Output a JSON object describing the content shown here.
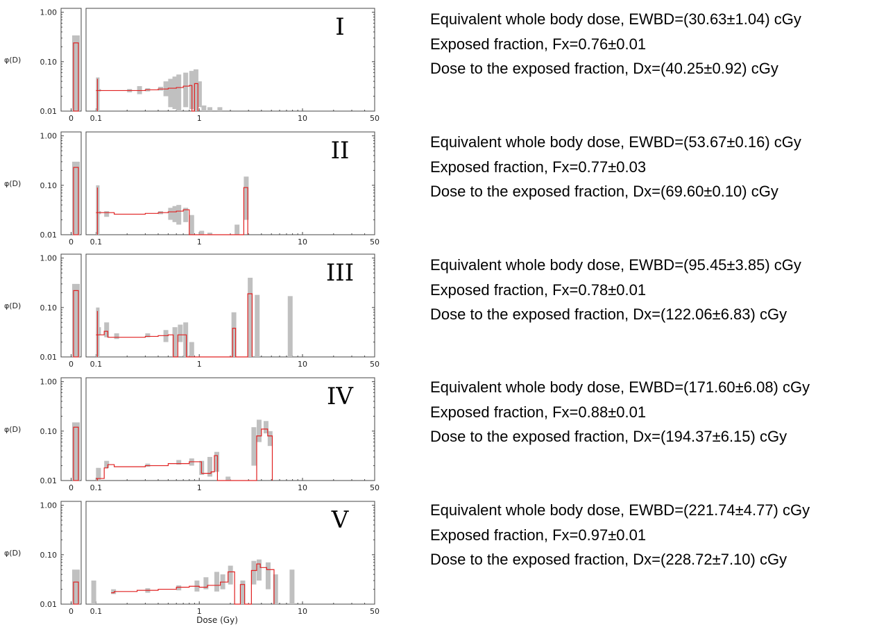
{
  "chart_data": [
    {
      "type": "bar",
      "label": "I",
      "ylabel": "φ(D)",
      "xlabel": "",
      "x_scale": "log",
      "y_scale": "log",
      "xlim": [
        0.08,
        50
      ],
      "ylim": [
        0.01,
        1.2
      ],
      "x_ticks": [
        "0",
        "0.1",
        "1",
        "10",
        "50"
      ],
      "y_ticks": [
        "1.00",
        "0.10",
        "0.01"
      ],
      "zero_bin": {
        "value": 0.24,
        "band": [
          0.01,
          0.34
        ]
      },
      "spike": {
        "x": 0.1,
        "value": 0.045,
        "band": [
          0.01,
          0.048
        ]
      },
      "steps": [
        [
          0.1,
          0.026
        ],
        [
          0.2,
          0.026
        ],
        [
          0.3,
          0.027
        ],
        [
          0.4,
          0.028
        ],
        [
          0.5,
          0.029
        ],
        [
          0.6,
          0.03
        ],
        [
          0.7,
          0.032
        ],
        [
          0.8,
          0.033
        ],
        [
          0.85,
          0.008
        ],
        [
          0.9,
          0.036
        ],
        [
          0.97,
          0.036
        ],
        [
          0.97,
          0.008
        ]
      ],
      "bands": [
        [
          0.1,
          0.025,
          0.028
        ],
        [
          0.2,
          0.024,
          0.028
        ],
        [
          0.25,
          0.022,
          0.032
        ],
        [
          0.3,
          0.025,
          0.029
        ],
        [
          0.4,
          0.026,
          0.031
        ],
        [
          0.45,
          0.02,
          0.04
        ],
        [
          0.5,
          0.012,
          0.045
        ],
        [
          0.55,
          0.011,
          0.05
        ],
        [
          0.6,
          0.01,
          0.055
        ],
        [
          0.7,
          0.012,
          0.06
        ],
        [
          0.8,
          0.011,
          0.065
        ],
        [
          0.88,
          0.01,
          0.07
        ],
        [
          0.95,
          0.012,
          0.04
        ],
        [
          1.05,
          0.01,
          0.013
        ],
        [
          1.2,
          0.01,
          0.012
        ],
        [
          1.5,
          0.01,
          0.012
        ]
      ],
      "stats": [
        "Equivalent whole body dose, EWBD=(30.63±1.04) cGy",
        "Exposed fraction, Fx=0.76±0.01",
        "Dose to the exposed fraction, Dx=(40.25±0.92) cGy"
      ]
    },
    {
      "type": "bar",
      "label": "II",
      "ylabel": "φ(D)",
      "xlabel": "",
      "x_scale": "log",
      "y_scale": "log",
      "xlim": [
        0.08,
        50
      ],
      "ylim": [
        0.01,
        1.2
      ],
      "x_ticks": [
        "0",
        "0.1",
        "1",
        "10",
        "50"
      ],
      "y_ticks": [
        "1.00",
        "0.10",
        "0.01"
      ],
      "zero_bin": {
        "value": 0.23,
        "band": [
          0.01,
          0.3
        ]
      },
      "spike": {
        "x": 0.1,
        "value": 0.09,
        "band": [
          0.01,
          0.1
        ]
      },
      "steps": [
        [
          0.1,
          0.028
        ],
        [
          0.15,
          0.026
        ],
        [
          0.2,
          0.026
        ],
        [
          0.3,
          0.027
        ],
        [
          0.4,
          0.028
        ],
        [
          0.5,
          0.029
        ],
        [
          0.6,
          0.03
        ],
        [
          0.7,
          0.032
        ],
        [
          0.8,
          0.008
        ],
        [
          2.7,
          0.09
        ],
        [
          2.95,
          0.008
        ]
      ],
      "bands": [
        [
          0.1,
          0.026,
          0.03
        ],
        [
          0.12,
          0.023,
          0.03
        ],
        [
          0.4,
          0.026,
          0.03
        ],
        [
          0.5,
          0.02,
          0.035
        ],
        [
          0.55,
          0.018,
          0.038
        ],
        [
          0.6,
          0.016,
          0.04
        ],
        [
          0.7,
          0.018,
          0.035
        ],
        [
          0.8,
          0.01,
          0.025
        ],
        [
          1.0,
          0.01,
          0.012
        ],
        [
          1.2,
          0.01,
          0.011
        ],
        [
          2.2,
          0.01,
          0.016
        ],
        [
          2.7,
          0.02,
          0.15
        ]
      ],
      "stats": [
        "Equivalent whole body dose, EWBD=(53.67±0.16) cGy",
        "Exposed fraction, Fx=0.77±0.03",
        "Dose to the exposed fraction, Dx=(69.60±0.10) cGy"
      ]
    },
    {
      "type": "bar",
      "label": "III",
      "ylabel": "φ(D)",
      "xlabel": "",
      "x_scale": "log",
      "y_scale": "log",
      "xlim": [
        0.08,
        50
      ],
      "ylim": [
        0.01,
        1.2
      ],
      "x_ticks": [
        "0",
        "0.1",
        "1",
        "10",
        "50"
      ],
      "y_ticks": [
        "1.00",
        "0.10",
        "0.01"
      ],
      "zero_bin": {
        "value": 0.22,
        "band": [
          0.01,
          0.3
        ]
      },
      "spike": {
        "x": 0.1,
        "value": 0.085,
        "band": [
          0.01,
          0.1
        ]
      },
      "steps": [
        [
          0.1,
          0.028
        ],
        [
          0.12,
          0.033
        ],
        [
          0.13,
          0.025
        ],
        [
          0.2,
          0.025
        ],
        [
          0.3,
          0.026
        ],
        [
          0.4,
          0.027
        ],
        [
          0.5,
          0.028
        ],
        [
          0.56,
          0.008
        ],
        [
          0.62,
          0.028
        ],
        [
          0.75,
          0.008
        ],
        [
          2.1,
          0.038
        ],
        [
          2.25,
          0.008
        ],
        [
          2.95,
          0.19
        ],
        [
          3.25,
          0.008
        ]
      ],
      "bands": [
        [
          0.1,
          0.028,
          0.04
        ],
        [
          0.12,
          0.025,
          0.05
        ],
        [
          0.15,
          0.023,
          0.03
        ],
        [
          0.3,
          0.025,
          0.03
        ],
        [
          0.45,
          0.02,
          0.035
        ],
        [
          0.55,
          0.01,
          0.04
        ],
        [
          0.62,
          0.02,
          0.045
        ],
        [
          0.7,
          0.01,
          0.05
        ],
        [
          0.8,
          0.01,
          0.02
        ],
        [
          2.05,
          0.01,
          0.08
        ],
        [
          2.95,
          0.01,
          0.4
        ],
        [
          3.45,
          0.01,
          0.18
        ],
        [
          7.2,
          0.01,
          0.17
        ]
      ],
      "stats": [
        "Equivalent whole body dose, EWBD=(95.45±3.85) cGy",
        "Exposed fraction, Fx=0.78±0.01",
        "Dose to the exposed fraction, Dx=(122.06±6.83) cGy"
      ]
    },
    {
      "type": "bar",
      "label": "IV",
      "ylabel": "φ(D)",
      "xlabel": "",
      "x_scale": "log",
      "y_scale": "log",
      "xlim": [
        0.08,
        50
      ],
      "ylim": [
        0.01,
        1.2
      ],
      "x_ticks": [
        "0",
        "0.1",
        "1",
        "10",
        "50"
      ],
      "y_ticks": [
        "1.00",
        "0.10",
        "0.01"
      ],
      "zero_bin": {
        "value": 0.12,
        "band": [
          0.01,
          0.15
        ]
      },
      "spike": {
        "x": 0.1,
        "value": 0.011,
        "band": [
          0.01,
          0.018
        ]
      },
      "steps": [
        [
          0.1,
          0.011
        ],
        [
          0.12,
          0.018
        ],
        [
          0.13,
          0.021
        ],
        [
          0.15,
          0.019
        ],
        [
          0.3,
          0.02
        ],
        [
          0.5,
          0.022
        ],
        [
          0.8,
          0.024
        ],
        [
          1.05,
          0.014
        ],
        [
          1.3,
          0.015
        ],
        [
          1.4,
          0.032
        ],
        [
          1.5,
          0.008
        ],
        [
          3.6,
          0.08
        ],
        [
          4.0,
          0.11
        ],
        [
          4.6,
          0.08
        ],
        [
          5.1,
          0.008
        ]
      ],
      "bands": [
        [
          0.1,
          0.01,
          0.018
        ],
        [
          0.12,
          0.018,
          0.025
        ],
        [
          0.3,
          0.019,
          0.022
        ],
        [
          0.6,
          0.021,
          0.026
        ],
        [
          0.8,
          0.02,
          0.028
        ],
        [
          1.0,
          0.013,
          0.025
        ],
        [
          1.2,
          0.012,
          0.03
        ],
        [
          1.4,
          0.015,
          0.038
        ],
        [
          1.8,
          0.01,
          0.012
        ],
        [
          3.2,
          0.02,
          0.12
        ],
        [
          3.6,
          0.06,
          0.17
        ],
        [
          4.2,
          0.09,
          0.16
        ],
        [
          4.6,
          0.05,
          0.1
        ]
      ],
      "stats": [
        "Equivalent whole body dose, EWBD=(171.60±6.08) cGy",
        "Exposed fraction, Fx=0.88±0.01",
        "Dose to the exposed fraction, Dx=(194.37±6.15) cGy"
      ]
    },
    {
      "type": "bar",
      "label": "V",
      "ylabel": "φ(D)",
      "xlabel": "Dose (Gy)",
      "x_scale": "log",
      "y_scale": "log",
      "xlim": [
        0.08,
        50
      ],
      "ylim": [
        0.01,
        1.2
      ],
      "x_ticks": [
        "0",
        "0.1",
        "1",
        "10",
        "50"
      ],
      "y_ticks": [
        "1.00",
        "0.10",
        "0.01"
      ],
      "zero_bin": {
        "value": 0.028,
        "band": [
          0.01,
          0.05
        ]
      },
      "spike": null,
      "steps": [
        [
          0.14,
          0.017
        ],
        [
          0.15,
          0.018
        ],
        [
          0.25,
          0.019
        ],
        [
          0.4,
          0.02
        ],
        [
          0.6,
          0.022
        ],
        [
          0.8,
          0.023
        ],
        [
          1.0,
          0.022
        ],
        [
          1.2,
          0.024
        ],
        [
          1.6,
          0.028
        ],
        [
          1.9,
          0.045
        ],
        [
          2.2,
          0.008
        ],
        [
          2.5,
          0.025
        ],
        [
          2.75,
          0.008
        ],
        [
          3.2,
          0.048
        ],
        [
          3.6,
          0.065
        ],
        [
          3.9,
          0.055
        ],
        [
          4.5,
          0.05
        ],
        [
          5.3,
          0.008
        ]
      ],
      "bands": [
        [
          0.09,
          0.01,
          0.03
        ],
        [
          0.14,
          0.016,
          0.02
        ],
        [
          0.3,
          0.017,
          0.021
        ],
        [
          0.6,
          0.019,
          0.024
        ],
        [
          0.9,
          0.018,
          0.03
        ],
        [
          1.1,
          0.02,
          0.035
        ],
        [
          1.4,
          0.018,
          0.045
        ],
        [
          1.6,
          0.02,
          0.04
        ],
        [
          1.9,
          0.025,
          0.06
        ],
        [
          2.5,
          0.01,
          0.03
        ],
        [
          3.2,
          0.025,
          0.075
        ],
        [
          3.6,
          0.03,
          0.08
        ],
        [
          4.4,
          0.02,
          0.07
        ],
        [
          5.2,
          0.01,
          0.04
        ],
        [
          7.5,
          0.01,
          0.05
        ]
      ],
      "stats": [
        "Equivalent whole body dose, EWBD=(221.74±4.77) cGy",
        "Exposed fraction, Fx=0.97±0.01",
        "Dose to the exposed fraction, Dx=(228.72±7.10) cGy"
      ]
    }
  ],
  "colors": {
    "band": "#c0c0c0",
    "step": "#e02020",
    "axis": "#444444"
  }
}
